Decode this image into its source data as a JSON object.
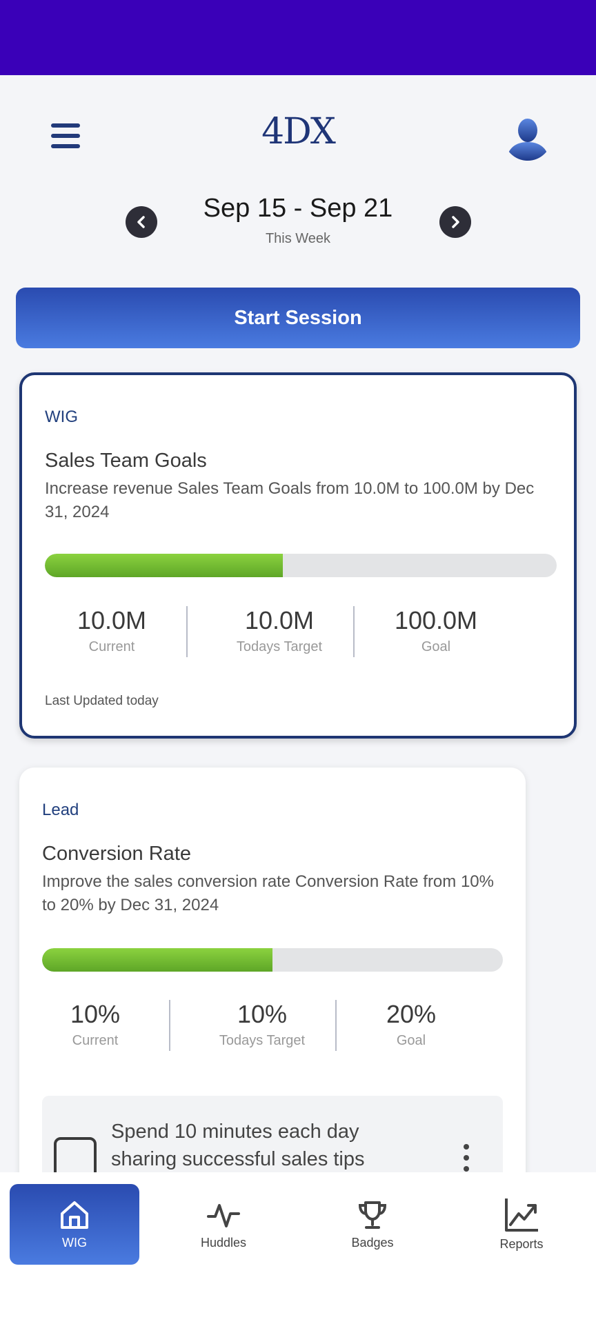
{
  "header": {
    "logo": "4DX"
  },
  "week": {
    "range": "Sep 15 - Sep 21",
    "label": "This Week"
  },
  "start_session_label": "Start Session",
  "wig_card": {
    "type": "WIG",
    "title": "Sales Team Goals",
    "description": "Increase revenue Sales Team Goals from 10.0M to 100.0M by Dec 31, 2024",
    "progress_fraction": 0.465,
    "stats": {
      "current_value": "10.0M",
      "current_label": "Current",
      "target_value": "10.0M",
      "target_label": "Todays Target",
      "goal_value": "100.0M",
      "goal_label": "Goal"
    },
    "last_updated": "Last Updated today"
  },
  "lead_card": {
    "type": "Lead",
    "title": "Conversion Rate",
    "description": "Improve the sales conversion rate Conversion Rate from 10% to 20% by Dec 31, 2024",
    "progress_fraction": 0.5,
    "stats": {
      "current_value": "10%",
      "current_label": "Current",
      "target_value": "10%",
      "target_label": "Todays Target",
      "goal_value": "20%",
      "goal_label": "Goal"
    },
    "task": {
      "text": "Spend 10 minutes each day sharing successful sales tips"
    }
  },
  "bottom_nav": {
    "items": [
      {
        "label": "WIG",
        "icon": "home-icon",
        "active": true
      },
      {
        "label": "Huddles",
        "icon": "activity-icon",
        "active": false
      },
      {
        "label": "Badges",
        "icon": "trophy-icon",
        "active": false
      },
      {
        "label": "Reports",
        "icon": "chart-icon",
        "active": false
      }
    ]
  },
  "colors": {
    "status_bar": "#3a00b8",
    "brand_navy": "#1e3673",
    "accent_blue": "#4a7be0",
    "progress_green": "#6cb52e"
  }
}
